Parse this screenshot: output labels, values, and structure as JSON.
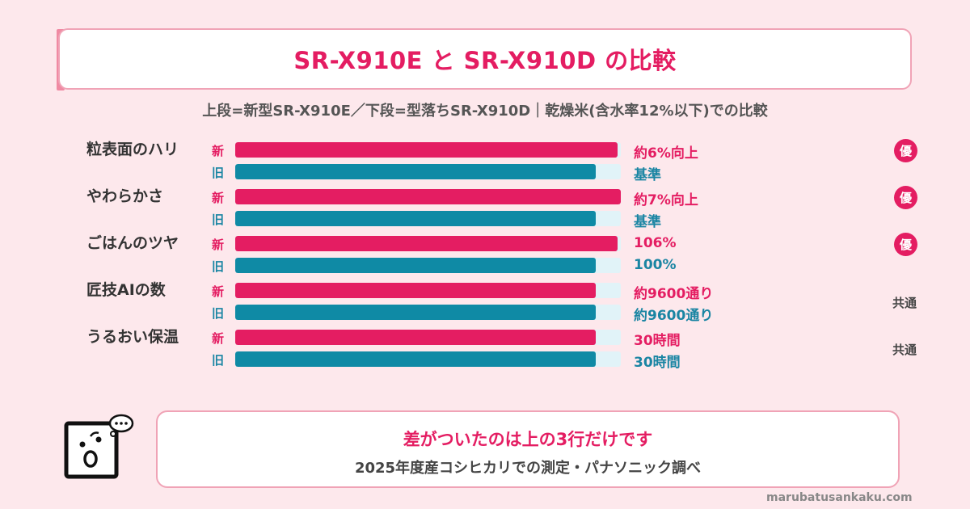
{
  "title": "SR-X910E と SR-X910D の比較",
  "subtitle": "上段=新型SR-X910E／下段=型落ちSR-X910D｜乾燥米(含水率12%以下)での比較",
  "chart_data": {
    "type": "bar",
    "orientation": "horizontal",
    "categories": [
      "粒表面のハリ",
      "やわらかさ",
      "ごはんのツヤ",
      "匠技AIの数",
      "うるおい保温"
    ],
    "series": [
      {
        "name": "新",
        "values": [
          106,
          107,
          106,
          100,
          100
        ],
        "labels": [
          "約6%向上",
          "約7%向上",
          "106%",
          "約9600通り",
          "30時間"
        ]
      },
      {
        "name": "旧",
        "values": [
          100,
          100,
          100,
          100,
          100
        ],
        "labels": [
          "基準",
          "基準",
          "100%",
          "約9600通り",
          "30時間"
        ]
      }
    ],
    "verdicts": [
      "優",
      "優",
      "優",
      "共通",
      "共通"
    ],
    "colors": {
      "new": "#e41d62",
      "old": "#0f8aa5",
      "track": "#e1f3f8"
    }
  },
  "footer": {
    "main": "差がついたのは上の3行だけです",
    "sub": "2025年度産コシヒカリでの測定・パナソニック調べ"
  },
  "credit": "marubatusankaku.com"
}
